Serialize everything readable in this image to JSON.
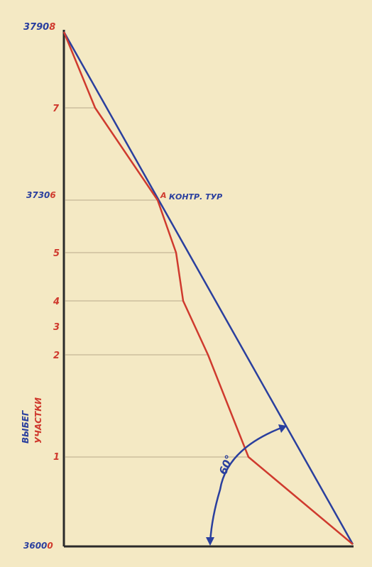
{
  "diagram": {
    "left_labels": {
      "top_blue": "3790",
      "top_red": "8",
      "mid_blue": "3730",
      "mid_red": "6",
      "bottom_blue": "3600",
      "bottom_red": "0"
    },
    "ticks": [
      "7",
      "5",
      "4",
      "3",
      "2",
      "1"
    ],
    "point_marker": "A",
    "point_label": "КОНТР. ТУР",
    "angle_label": "60°",
    "vertical_caption_blue": "ВЫБЕГ",
    "vertical_caption_red": "УЧАСТКИ"
  },
  "colors": {
    "paper": "#f4e9c4",
    "axis": "#2a2a2a",
    "guide": "#b8a98a",
    "red": "#cf3a2e",
    "blue": "#2a3f9e"
  }
}
